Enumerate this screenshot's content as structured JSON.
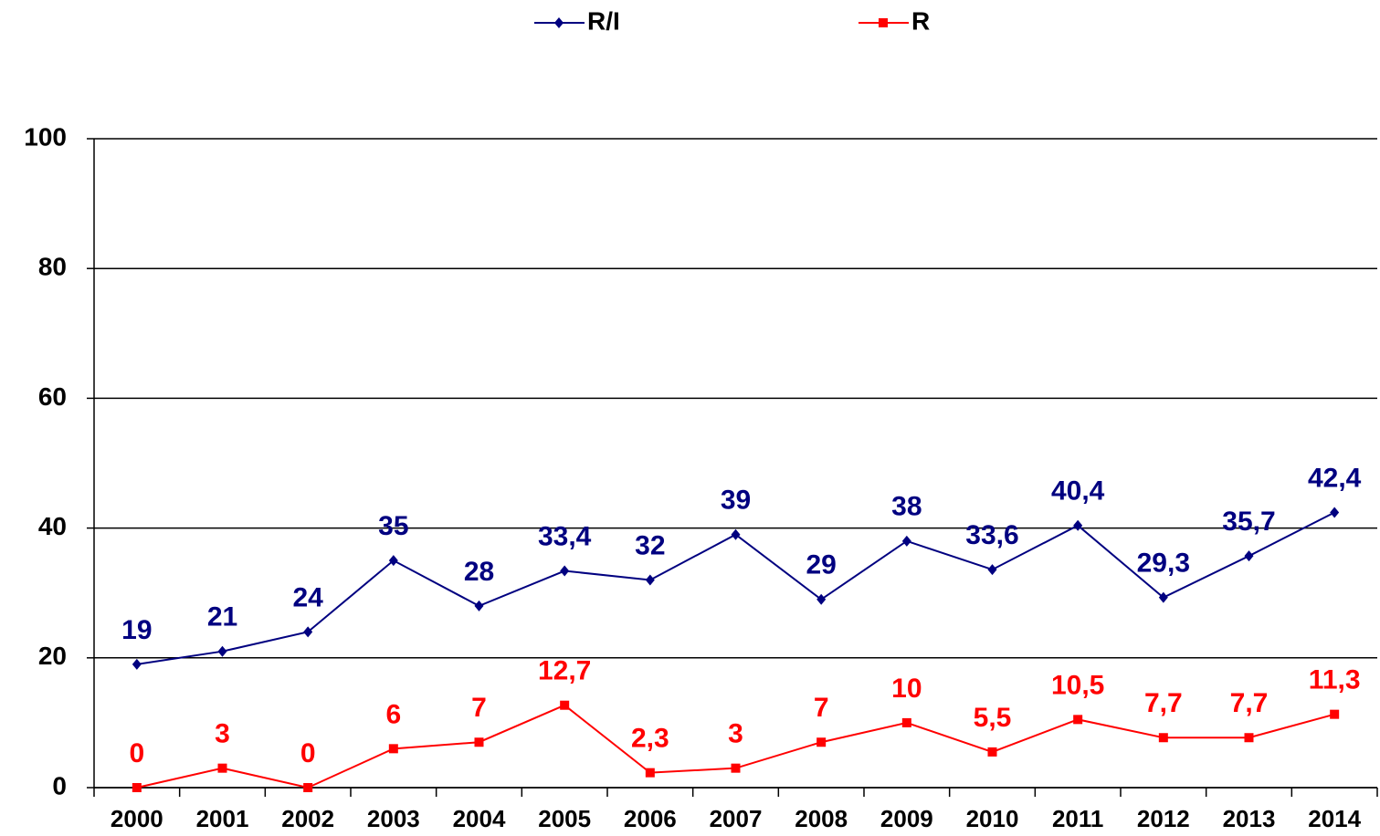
{
  "chart_data": {
    "type": "line",
    "categories": [
      "2000",
      "2001",
      "2002",
      "2003",
      "2004",
      "2005",
      "2006",
      "2007",
      "2008",
      "2009",
      "2010",
      "2011",
      "2012",
      "2013",
      "2014"
    ],
    "series": [
      {
        "name": "R/I",
        "color": "#000080",
        "marker": "diamond",
        "values": [
          19,
          21,
          24,
          35,
          28,
          33.4,
          32,
          39,
          29,
          38,
          33.6,
          40.4,
          29.3,
          35.7,
          42.4
        ],
        "value_labels": [
          "19",
          "21",
          "24",
          "35",
          "28",
          "33,4",
          "32",
          "39",
          "29",
          "38",
          "33,6",
          "40,4",
          "29,3",
          "35,7",
          "42,4"
        ]
      },
      {
        "name": "R",
        "color": "#ff0000",
        "marker": "square",
        "values": [
          0,
          3,
          0,
          6,
          7,
          12.7,
          2.3,
          3,
          7,
          10,
          5.5,
          10.5,
          7.7,
          7.7,
          11.3
        ],
        "value_labels": [
          "0",
          "3",
          "0",
          "6",
          "7",
          "12,7",
          "2,3",
          "3",
          "7",
          "10",
          "5,5",
          "10,5",
          "7,7",
          "7,7",
          "11,3"
        ]
      }
    ],
    "ylim": [
      0,
      100
    ],
    "yticks": [
      0,
      20,
      40,
      60,
      80,
      100
    ],
    "grid": true,
    "legend": "top"
  }
}
